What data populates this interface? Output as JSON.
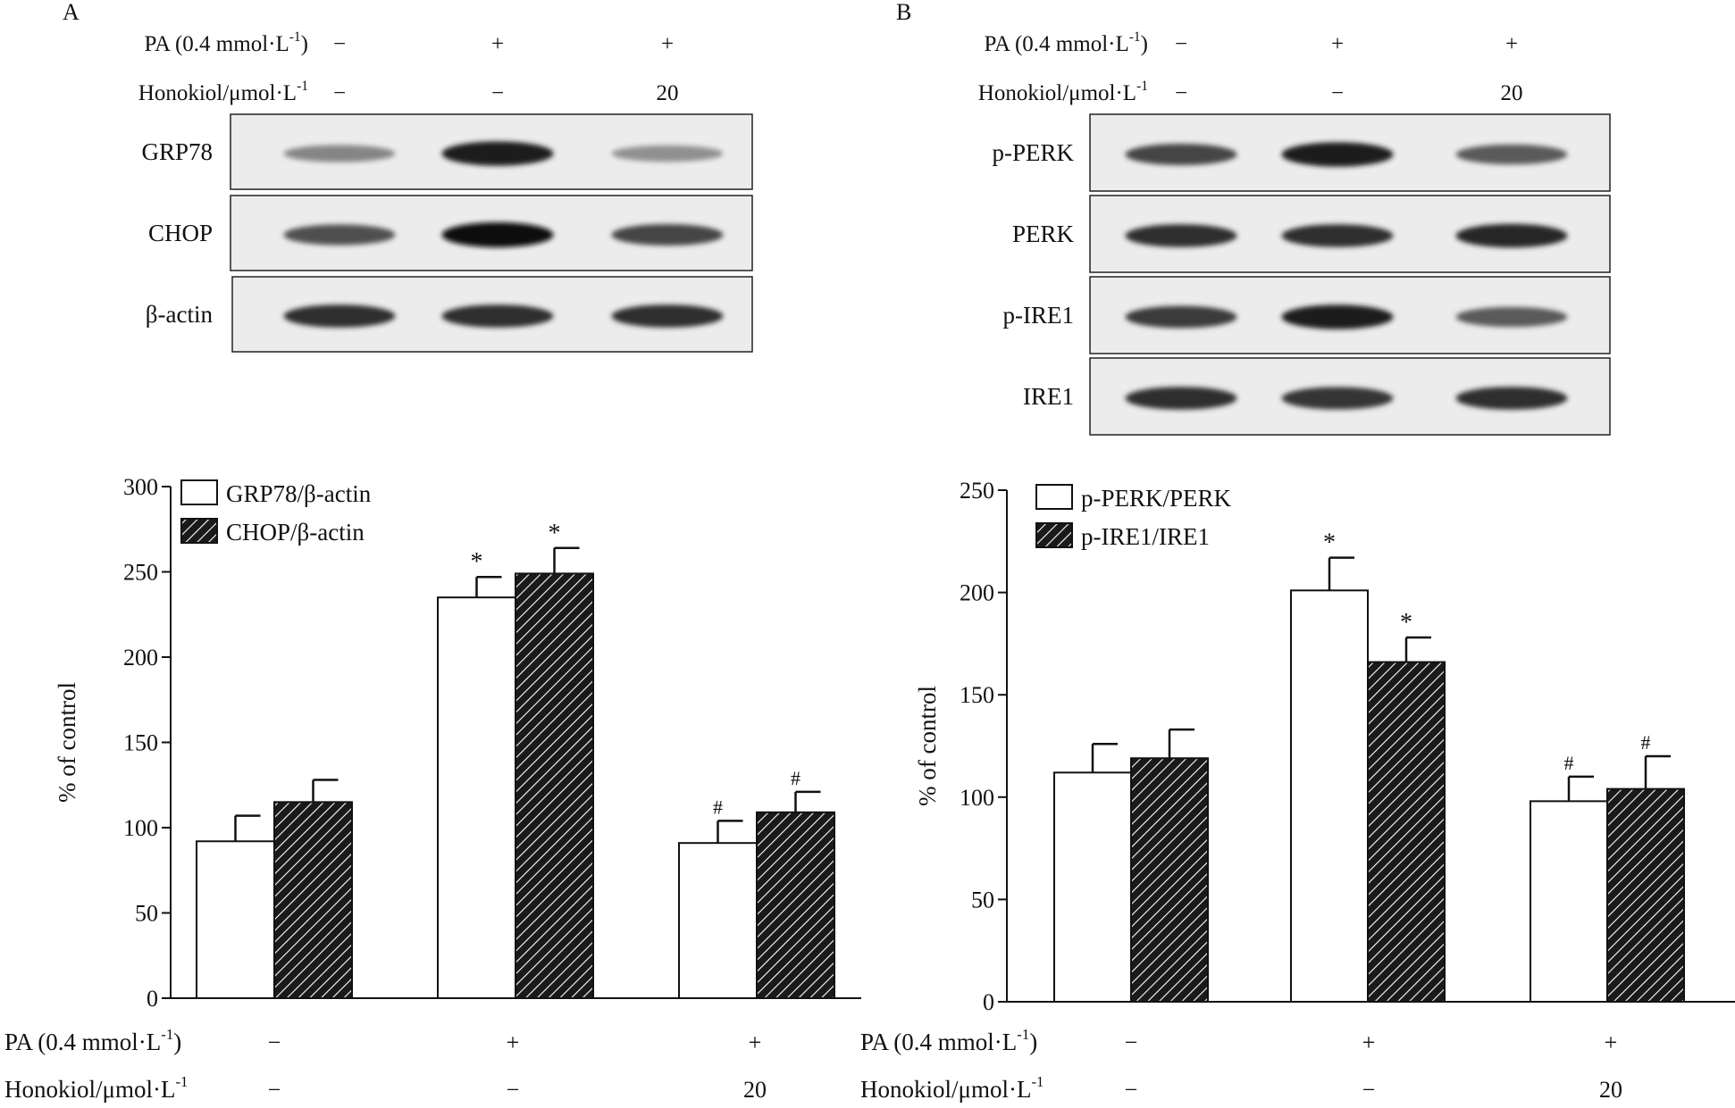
{
  "panels": [
    {
      "letter": "A",
      "treatment_rows": [
        {
          "label": "PA (0.4 mmol·L",
          "sup": "-1",
          "tail": ")",
          "values": [
            "−",
            "+",
            "+"
          ]
        },
        {
          "label": "Honokiol/μmol·L",
          "sup": "-1",
          "tail": "",
          "values": [
            "−",
            "−",
            "20"
          ]
        }
      ],
      "blot_labels": [
        "GRP78",
        "CHOP",
        "β-actin"
      ],
      "blot_intensity": [
        [
          0.45,
          0.95,
          0.4
        ],
        [
          0.7,
          1.0,
          0.75
        ],
        [
          0.85,
          0.85,
          0.85
        ]
      ]
    },
    {
      "letter": "B",
      "treatment_rows": [
        {
          "label": "PA (0.4 mmol·L",
          "sup": "-1",
          "tail": ")",
          "values": [
            "−",
            "+",
            "+"
          ]
        },
        {
          "label": "Honokiol/μmol·L",
          "sup": "-1",
          "tail": "",
          "values": [
            "−",
            "−",
            "20"
          ]
        }
      ],
      "blot_labels": [
        "p-PERK",
        "PERK",
        "p-IRE1",
        "IRE1"
      ],
      "blot_intensity": [
        [
          0.75,
          0.95,
          0.65
        ],
        [
          0.85,
          0.85,
          0.9
        ],
        [
          0.8,
          0.95,
          0.65
        ],
        [
          0.85,
          0.82,
          0.85
        ]
      ]
    }
  ],
  "chart_data": [
    {
      "type": "bar",
      "ylabel": "% of control",
      "ylim": [
        0,
        300
      ],
      "yticks": [
        0,
        50,
        100,
        150,
        200,
        250,
        300
      ],
      "groups": 3,
      "legend_position": "top-left",
      "series": [
        {
          "name": "GRP78/β-actin",
          "fill": "open",
          "values": [
            92,
            235,
            91
          ],
          "errors": [
            15,
            12,
            13
          ],
          "marks": [
            "",
            "*",
            "#"
          ]
        },
        {
          "name": "CHOP/β-actin",
          "fill": "hatched",
          "values": [
            115,
            249,
            109
          ],
          "errors": [
            13,
            15,
            12
          ],
          "marks": [
            "",
            "*",
            "#"
          ]
        }
      ],
      "treatment_rows": [
        {
          "label": "PA (0.4 mmol·L",
          "sup": "-1",
          "tail": ")",
          "values": [
            "−",
            "+",
            "+"
          ]
        },
        {
          "label": "Honokiol/μmol·L",
          "sup": "-1",
          "tail": "",
          "values": [
            "−",
            "−",
            "20"
          ]
        }
      ]
    },
    {
      "type": "bar",
      "ylabel": "% of control",
      "ylim": [
        0,
        250
      ],
      "yticks": [
        0,
        50,
        100,
        150,
        200,
        250
      ],
      "groups": 3,
      "legend_position": "top-left",
      "series": [
        {
          "name": "p-PERK/PERK",
          "fill": "open",
          "values": [
            112,
            201,
            98
          ],
          "errors": [
            14,
            16,
            12
          ],
          "marks": [
            "",
            "*",
            "#"
          ]
        },
        {
          "name": "p-IRE1/IRE1",
          "fill": "hatched",
          "values": [
            119,
            166,
            104
          ],
          "errors": [
            14,
            12,
            16
          ],
          "marks": [
            "",
            "*",
            "#"
          ]
        }
      ],
      "treatment_rows": [
        {
          "label": "PA (0.4 mmol·L",
          "sup": "-1",
          "tail": ")",
          "values": [
            "−",
            "+",
            "+"
          ]
        },
        {
          "label": "Honokiol/μmol·L",
          "sup": "-1",
          "tail": "",
          "values": [
            "−",
            "−",
            "20"
          ]
        }
      ]
    }
  ]
}
